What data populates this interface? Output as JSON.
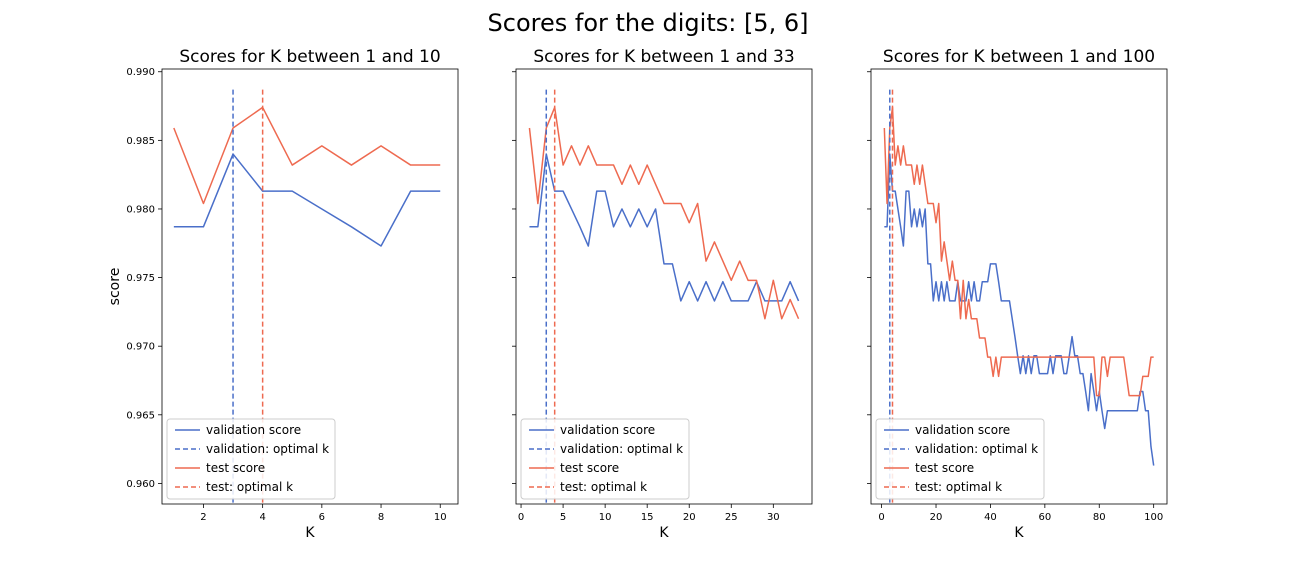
{
  "figure": {
    "suptitle": "Scores for the digits: [5, 6]"
  },
  "chart_data": [
    {
      "type": "line",
      "title": "Scores for K between 1 and 10",
      "xlabel": "K",
      "ylabel": "score",
      "xlim": [
        0.6,
        10.6
      ],
      "ylim": [
        0.9585,
        0.9902
      ],
      "xticks": [
        2,
        4,
        6,
        8,
        10
      ],
      "yticks": [
        0.96,
        0.965,
        0.97,
        0.975,
        0.98,
        0.985,
        0.99
      ],
      "ytick_labels": [
        "0.960",
        "0.965",
        "0.970",
        "0.975",
        "0.980",
        "0.985",
        "0.990"
      ],
      "legend_position": "lower-left",
      "series": [
        {
          "name": "validation score",
          "color": "#4a6fc9",
          "x": [
            1,
            2,
            3,
            4,
            5,
            6,
            7,
            8,
            9,
            10
          ],
          "y": [
            0.9787,
            0.9787,
            0.984,
            0.9813,
            0.9813,
            0.98,
            0.9787,
            0.9773,
            0.9813,
            0.9813
          ]
        },
        {
          "name": "test score",
          "color": "#ee6a50",
          "x": [
            1,
            2,
            3,
            4,
            5,
            6,
            7,
            8,
            9,
            10
          ],
          "y": [
            0.9859,
            0.9804,
            0.9859,
            0.9874,
            0.9832,
            0.9846,
            0.9832,
            0.9846,
            0.9832,
            0.9832
          ]
        }
      ],
      "vlines": [
        {
          "name": "validation: optimal k",
          "x": 3,
          "color": "#4a6fc9"
        },
        {
          "name": "test: optimal k",
          "x": 4,
          "color": "#ee6a50"
        }
      ]
    },
    {
      "type": "line",
      "title": "Scores for K between 1 and 33",
      "xlabel": "K",
      "xlim": [
        -0.6,
        34.6
      ],
      "ylim": [
        0.9585,
        0.9902
      ],
      "xticks": [
        0,
        5,
        10,
        15,
        20,
        25,
        30
      ],
      "yticks": [
        0.96,
        0.965,
        0.97,
        0.975,
        0.98,
        0.985,
        0.99
      ],
      "legend_position": "lower-left",
      "series": [
        {
          "name": "validation score",
          "color": "#4a6fc9",
          "x": [
            1,
            2,
            3,
            4,
            5,
            6,
            7,
            8,
            9,
            10,
            11,
            12,
            13,
            14,
            15,
            16,
            17,
            18,
            19,
            20,
            21,
            22,
            23,
            24,
            25,
            26,
            27,
            28,
            29,
            30,
            31,
            32,
            33
          ],
          "y": [
            0.9787,
            0.9787,
            0.984,
            0.9813,
            0.9813,
            0.98,
            0.9787,
            0.9773,
            0.9813,
            0.9813,
            0.9787,
            0.98,
            0.9787,
            0.98,
            0.9787,
            0.98,
            0.976,
            0.976,
            0.9733,
            0.9747,
            0.9733,
            0.9747,
            0.9733,
            0.9747,
            0.9733,
            0.9733,
            0.9733,
            0.9747,
            0.9733,
            0.9733,
            0.9733,
            0.9747,
            0.9733
          ]
        },
        {
          "name": "test score",
          "color": "#ee6a50",
          "x": [
            1,
            2,
            3,
            4,
            5,
            6,
            7,
            8,
            9,
            10,
            11,
            12,
            13,
            14,
            15,
            16,
            17,
            18,
            19,
            20,
            21,
            22,
            23,
            24,
            25,
            26,
            27,
            28,
            29,
            30,
            31,
            32,
            33
          ],
          "y": [
            0.9859,
            0.9804,
            0.9859,
            0.9874,
            0.9832,
            0.9846,
            0.9832,
            0.9846,
            0.9832,
            0.9832,
            0.9832,
            0.9818,
            0.9832,
            0.9818,
            0.9832,
            0.9818,
            0.9804,
            0.9804,
            0.9804,
            0.979,
            0.9804,
            0.9762,
            0.9776,
            0.9762,
            0.9748,
            0.9762,
            0.9748,
            0.9748,
            0.972,
            0.9748,
            0.972,
            0.9734,
            0.972
          ]
        }
      ],
      "vlines": [
        {
          "name": "validation: optimal k",
          "x": 3,
          "color": "#4a6fc9"
        },
        {
          "name": "test: optimal k",
          "x": 4,
          "color": "#ee6a50"
        }
      ]
    },
    {
      "type": "line",
      "title": "Scores for K between 1 and 100",
      "xlabel": "K",
      "xlim": [
        -3.9,
        104.9
      ],
      "ylim": [
        0.9585,
        0.9902
      ],
      "xticks": [
        0,
        20,
        40,
        60,
        80,
        100
      ],
      "yticks": [
        0.96,
        0.965,
        0.97,
        0.975,
        0.98,
        0.985,
        0.99
      ],
      "legend_position": "lower-left",
      "series": [
        {
          "name": "validation score",
          "color": "#4a6fc9",
          "x": [
            1,
            2,
            3,
            4,
            5,
            6,
            7,
            8,
            9,
            10,
            11,
            12,
            13,
            14,
            15,
            16,
            17,
            18,
            19,
            20,
            21,
            22,
            23,
            24,
            25,
            26,
            27,
            28,
            29,
            30,
            31,
            32,
            33,
            34,
            35,
            36,
            37,
            38,
            39,
            40,
            41,
            42,
            43,
            44,
            45,
            46,
            47,
            48,
            49,
            50,
            51,
            52,
            53,
            54,
            55,
            56,
            57,
            58,
            59,
            60,
            61,
            62,
            63,
            64,
            65,
            66,
            67,
            68,
            69,
            70,
            71,
            72,
            73,
            74,
            75,
            76,
            77,
            78,
            79,
            80,
            81,
            82,
            83,
            84,
            85,
            86,
            87,
            88,
            89,
            90,
            91,
            92,
            93,
            94,
            95,
            96,
            97,
            98,
            99,
            100
          ],
          "y": [
            0.9787,
            0.9787,
            0.984,
            0.9813,
            0.9813,
            0.98,
            0.9787,
            0.9773,
            0.9813,
            0.9813,
            0.9787,
            0.98,
            0.9787,
            0.98,
            0.9787,
            0.98,
            0.976,
            0.976,
            0.9733,
            0.9747,
            0.9733,
            0.9747,
            0.9733,
            0.9747,
            0.9733,
            0.9733,
            0.9733,
            0.9747,
            0.9733,
            0.9733,
            0.9733,
            0.9747,
            0.9733,
            0.9747,
            0.9733,
            0.9733,
            0.9747,
            0.9747,
            0.9747,
            0.976,
            0.976,
            0.976,
            0.9747,
            0.9733,
            0.9733,
            0.9733,
            0.9733,
            0.972,
            0.9707,
            0.9693,
            0.968,
            0.9693,
            0.968,
            0.9693,
            0.968,
            0.9693,
            0.9693,
            0.968,
            0.968,
            0.968,
            0.968,
            0.9693,
            0.968,
            0.9693,
            0.9693,
            0.9693,
            0.968,
            0.968,
            0.9693,
            0.9707,
            0.9693,
            0.9693,
            0.968,
            0.968,
            0.9667,
            0.9653,
            0.968,
            0.9667,
            0.9653,
            0.9667,
            0.9653,
            0.964,
            0.9653,
            0.9653,
            0.9653,
            0.9653,
            0.9653,
            0.9653,
            0.9653,
            0.9653,
            0.9653,
            0.9653,
            0.9653,
            0.9653,
            0.9667,
            0.9667,
            0.9653,
            0.9653,
            0.9627,
            0.9613
          ]
        },
        {
          "name": "test score",
          "color": "#ee6a50",
          "x": [
            1,
            2,
            3,
            4,
            5,
            6,
            7,
            8,
            9,
            10,
            11,
            12,
            13,
            14,
            15,
            16,
            17,
            18,
            19,
            20,
            21,
            22,
            23,
            24,
            25,
            26,
            27,
            28,
            29,
            30,
            31,
            32,
            33,
            34,
            35,
            36,
            37,
            38,
            39,
            40,
            41,
            42,
            43,
            44,
            45,
            46,
            47,
            48,
            49,
            50,
            51,
            52,
            53,
            54,
            55,
            56,
            57,
            58,
            59,
            60,
            61,
            62,
            63,
            64,
            65,
            66,
            67,
            68,
            69,
            70,
            71,
            72,
            73,
            74,
            75,
            76,
            77,
            78,
            79,
            80,
            81,
            82,
            83,
            84,
            85,
            86,
            87,
            88,
            89,
            90,
            91,
            92,
            93,
            94,
            95,
            96,
            97,
            98,
            99,
            100
          ],
          "y": [
            0.9859,
            0.9804,
            0.9859,
            0.9874,
            0.9832,
            0.9846,
            0.9832,
            0.9846,
            0.9832,
            0.9832,
            0.9832,
            0.9818,
            0.9832,
            0.9818,
            0.9832,
            0.9818,
            0.9804,
            0.9804,
            0.9804,
            0.979,
            0.9804,
            0.9762,
            0.9776,
            0.9762,
            0.9748,
            0.9762,
            0.9748,
            0.9748,
            0.972,
            0.9748,
            0.972,
            0.9734,
            0.972,
            0.972,
            0.972,
            0.9706,
            0.9706,
            0.9706,
            0.9692,
            0.9692,
            0.9678,
            0.9692,
            0.9678,
            0.9692,
            0.9692,
            0.9692,
            0.9692,
            0.9692,
            0.9692,
            0.9692,
            0.9692,
            0.9692,
            0.9692,
            0.9692,
            0.9692,
            0.9692,
            0.9692,
            0.9692,
            0.9692,
            0.9692,
            0.9692,
            0.9692,
            0.9692,
            0.9692,
            0.9692,
            0.9692,
            0.9692,
            0.9692,
            0.9692,
            0.9692,
            0.9692,
            0.9692,
            0.9692,
            0.9692,
            0.9692,
            0.9692,
            0.9692,
            0.9692,
            0.9664,
            0.9664,
            0.9692,
            0.9692,
            0.9678,
            0.9692,
            0.9692,
            0.9692,
            0.9692,
            0.9692,
            0.9692,
            0.9678,
            0.9664,
            0.9664,
            0.9664,
            0.9664,
            0.9664,
            0.9678,
            0.9678,
            0.9678,
            0.9692,
            0.9692
          ]
        }
      ],
      "vlines": [
        {
          "name": "validation: optimal k",
          "x": 3,
          "color": "#4a6fc9"
        },
        {
          "name": "test: optimal k",
          "x": 4,
          "color": "#ee6a50"
        }
      ]
    }
  ]
}
